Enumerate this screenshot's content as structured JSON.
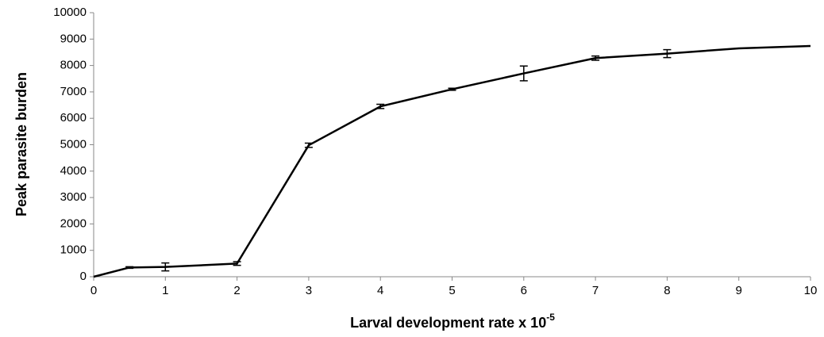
{
  "chart_data": {
    "type": "line",
    "xlabel": "Larval development rate x 10",
    "xlabel_superscript": "-5",
    "ylabel": "Peak parasite burden",
    "x": [
      0,
      0.5,
      1,
      2,
      3,
      4,
      5,
      6,
      7,
      8,
      9,
      10
    ],
    "values": [
      0,
      350,
      370,
      500,
      4980,
      6450,
      7100,
      7700,
      8280,
      8450,
      8650,
      8740
    ],
    "errors": [
      null,
      30,
      150,
      70,
      80,
      80,
      40,
      280,
      80,
      150,
      null,
      null
    ],
    "color": "#000000",
    "xlim": [
      0,
      10
    ],
    "xticks": [
      0,
      1,
      2,
      3,
      4,
      5,
      6,
      7,
      8,
      9,
      10
    ],
    "ylim": [
      0,
      10000
    ],
    "yticks": [
      0,
      1000,
      2000,
      3000,
      4000,
      5000,
      6000,
      7000,
      8000,
      9000,
      10000
    ],
    "grid": false
  }
}
